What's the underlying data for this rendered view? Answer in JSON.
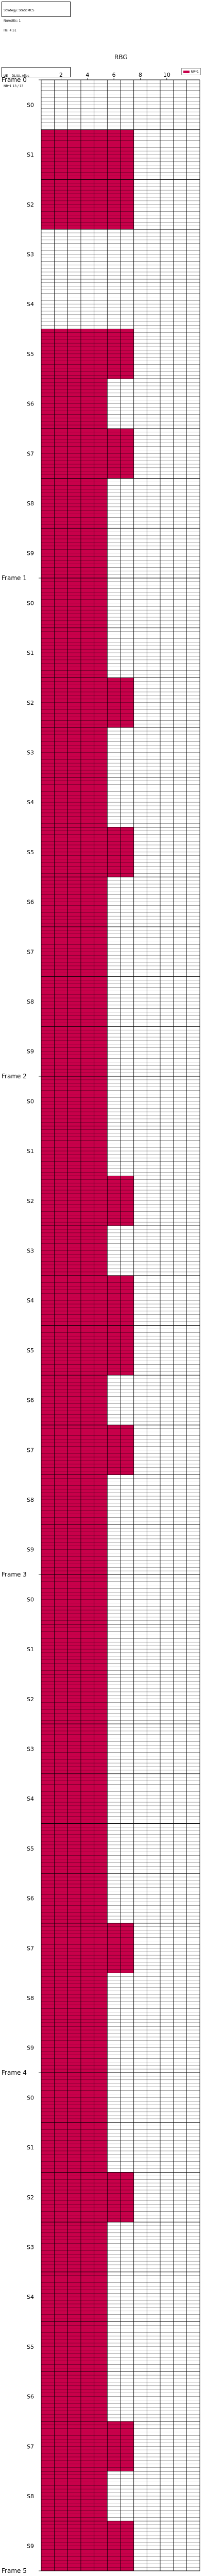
{
  "info": {
    "lines": [
      "Strategy: StaticMCS",
      "NumUEs: 1",
      "ITs: 4.51"
    ]
  },
  "info2": {
    "lines": [
      "UE    DL/UL Alloc",
      "NR*1 13 / 13"
    ]
  },
  "legend": {
    "label": "NR*1",
    "color": "#c8004a"
  },
  "axis": {
    "title": "RBG",
    "ticks": [
      "2",
      "4",
      "6",
      "8",
      "10"
    ]
  },
  "colors": {
    "allocated": "#c8004a",
    "free": "#ffffff",
    "grid": "#000000"
  },
  "chart_data": {
    "type": "heatmap",
    "title": "",
    "xlabel": "RBG",
    "ylabel": "",
    "rbg_count": 12,
    "slots_per_subframe": 14,
    "frames": [
      {
        "label": "Frame 0",
        "subframes": [
          {
            "label": "S0",
            "rbgs": 0
          },
          {
            "label": "S1",
            "rbgs": 7
          },
          {
            "label": "S2",
            "rbgs": 7
          },
          {
            "label": "S3",
            "rbgs": 0
          },
          {
            "label": "S4",
            "rbgs": 0
          },
          {
            "label": "S5",
            "rbgs": 7
          },
          {
            "label": "S6",
            "rbgs": 5
          },
          {
            "label": "S7",
            "rbgs": 7
          },
          {
            "label": "S8",
            "rbgs": 5
          },
          {
            "label": "S9",
            "rbgs": 5
          }
        ]
      },
      {
        "label": "Frame 1",
        "subframes": [
          {
            "label": "S0",
            "rbgs": 5
          },
          {
            "label": "S1",
            "rbgs": 5
          },
          {
            "label": "S2",
            "rbgs": 7
          },
          {
            "label": "S3",
            "rbgs": 5
          },
          {
            "label": "S4",
            "rbgs": 5
          },
          {
            "label": "S5",
            "rbgs": 7
          },
          {
            "label": "S6",
            "rbgs": 5
          },
          {
            "label": "S7",
            "rbgs": 5
          },
          {
            "label": "S8",
            "rbgs": 5
          },
          {
            "label": "S9",
            "rbgs": 5
          }
        ]
      },
      {
        "label": "Frame 2",
        "subframes": [
          {
            "label": "S0",
            "rbgs": 5
          },
          {
            "label": "S1",
            "rbgs": 5
          },
          {
            "label": "S2",
            "rbgs": 7
          },
          {
            "label": "S3",
            "rbgs": 5
          },
          {
            "label": "S4",
            "rbgs": 7
          },
          {
            "label": "S5",
            "rbgs": 7
          },
          {
            "label": "S6",
            "rbgs": 5
          },
          {
            "label": "S7",
            "rbgs": 7
          },
          {
            "label": "S8",
            "rbgs": 5
          },
          {
            "label": "S9",
            "rbgs": 5
          }
        ]
      },
      {
        "label": "Frame 3",
        "subframes": [
          {
            "label": "S0",
            "rbgs": 5
          },
          {
            "label": "S1",
            "rbgs": 5
          },
          {
            "label": "S2",
            "rbgs": 5
          },
          {
            "label": "S3",
            "rbgs": 5
          },
          {
            "label": "S4",
            "rbgs": 5
          },
          {
            "label": "S5",
            "rbgs": 5
          },
          {
            "label": "S6",
            "rbgs": 5
          },
          {
            "label": "S7",
            "rbgs": 7
          },
          {
            "label": "S8",
            "rbgs": 5
          },
          {
            "label": "S9",
            "rbgs": 5
          }
        ]
      },
      {
        "label": "Frame 4",
        "subframes": [
          {
            "label": "S0",
            "rbgs": 5
          },
          {
            "label": "S1",
            "rbgs": 5
          },
          {
            "label": "S2",
            "rbgs": 7
          },
          {
            "label": "S3",
            "rbgs": 5
          },
          {
            "label": "S4",
            "rbgs": 5
          },
          {
            "label": "S5",
            "rbgs": 5
          },
          {
            "label": "S6",
            "rbgs": 5
          },
          {
            "label": "S7",
            "rbgs": 7
          },
          {
            "label": "S8",
            "rbgs": 5
          },
          {
            "label": "S9",
            "rbgs": 7
          }
        ]
      },
      {
        "label": "Frame 5",
        "subframes": []
      }
    ]
  }
}
